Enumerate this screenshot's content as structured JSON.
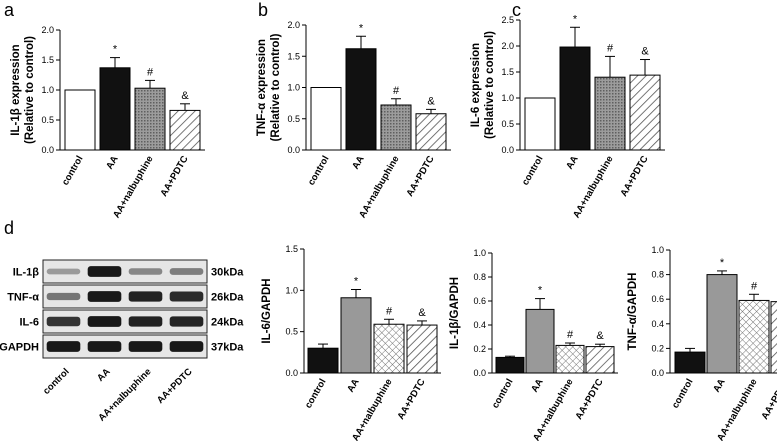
{
  "panel_labels": {
    "a": "a",
    "b": "b",
    "c": "c",
    "d": "d"
  },
  "chart_data": [
    {
      "type": "bar",
      "panel": "a",
      "categories": [
        "control",
        "AA",
        "AA+nalbuphine",
        "AA+PDTC"
      ],
      "values": [
        1.0,
        1.37,
        1.03,
        0.66
      ],
      "errors": [
        0,
        0.17,
        0.13,
        0.11
      ],
      "annotations": [
        "",
        "*",
        "#",
        "&"
      ],
      "ylabel_lines": [
        "IL-1β expression",
        "(Relative to control)"
      ],
      "ylim": [
        0,
        2.0
      ],
      "yticks": [
        "0.0",
        "0.5",
        "1.0",
        "1.5",
        "2.0"
      ],
      "styles": [
        "white",
        "black",
        "dots",
        "hatch"
      ]
    },
    {
      "type": "bar",
      "panel": "b",
      "categories": [
        "control",
        "AA",
        "AA+nalbuphine",
        "AA+PDTC"
      ],
      "values": [
        1.0,
        1.62,
        0.72,
        0.58
      ],
      "errors": [
        0,
        0.2,
        0.1,
        0.07
      ],
      "annotations": [
        "",
        "*",
        "#",
        "&"
      ],
      "ylabel_lines": [
        "TNF-α expression",
        "(Relative to control)"
      ],
      "ylim": [
        0,
        2.0
      ],
      "yticks": [
        "0.0",
        "0.5",
        "1.0",
        "1.5",
        "2.0"
      ],
      "styles": [
        "white",
        "black",
        "dots",
        "hatch"
      ]
    },
    {
      "type": "bar",
      "panel": "c",
      "categories": [
        "control",
        "AA",
        "AA+nalbuphine",
        "AA+PDTC"
      ],
      "values": [
        1.0,
        1.98,
        1.4,
        1.44
      ],
      "errors": [
        0,
        0.38,
        0.4,
        0.3
      ],
      "annotations": [
        "",
        "*",
        "#",
        "&"
      ],
      "ylabel_lines": [
        "IL-6 expression",
        "(Relative to control)"
      ],
      "ylim": [
        0,
        2.5
      ],
      "yticks": [
        "0.0",
        "0.5",
        "1.0",
        "1.5",
        "2.0",
        "2.5"
      ],
      "styles": [
        "white",
        "black",
        "dots",
        "hatch"
      ]
    },
    {
      "type": "bar",
      "panel": "d",
      "categories": [
        "control",
        "AA",
        "AA+nalbuphine",
        "AA+PDTC"
      ],
      "values": [
        0.3,
        0.91,
        0.59,
        0.58
      ],
      "errors": [
        0.05,
        0.1,
        0.06,
        0.05
      ],
      "annotations": [
        "",
        "*",
        "#",
        "&"
      ],
      "ylabel_lines": [
        "IL-6/GAPDH"
      ],
      "ylim": [
        0,
        1.5
      ],
      "yticks": [
        "0.0",
        "0.5",
        "1.0",
        "1.5"
      ],
      "styles": [
        "black",
        "gray",
        "check",
        "hatch"
      ]
    },
    {
      "type": "bar",
      "panel": "d",
      "categories": [
        "control",
        "AA",
        "AA+nalbuphine",
        "AA+PDTC"
      ],
      "values": [
        0.13,
        0.53,
        0.23,
        0.22
      ],
      "errors": [
        0.01,
        0.09,
        0.02,
        0.02
      ],
      "annotations": [
        "",
        "*",
        "#",
        "&"
      ],
      "ylabel_lines": [
        "IL-1β/GAPDH"
      ],
      "ylim": [
        0,
        1.0
      ],
      "yticks": [
        "0.0",
        "0.2",
        "0.4",
        "0.6",
        "0.8",
        "1.0"
      ],
      "styles": [
        "black",
        "gray",
        "check",
        "hatch"
      ]
    },
    {
      "type": "bar",
      "panel": "d",
      "categories": [
        "control",
        "AA",
        "AA+nalbuphine",
        "AA+PDTC"
      ],
      "values": [
        0.17,
        0.8,
        0.59,
        0.58
      ],
      "errors": [
        0.03,
        0.03,
        0.05,
        0.06
      ],
      "annotations": [
        "",
        "*",
        "#",
        "&"
      ],
      "ylabel_lines": [
        "TNF-α/GAPDH"
      ],
      "ylim": [
        0,
        1.0
      ],
      "yticks": [
        "0.0",
        "0.2",
        "0.4",
        "0.6",
        "0.8",
        "1.0"
      ],
      "styles": [
        "black",
        "gray",
        "check",
        "hatch"
      ]
    }
  ],
  "blot": {
    "bands": [
      {
        "label": "IL-1β",
        "kda": "30kDa",
        "intensities": [
          0.25,
          0.95,
          0.35,
          0.4
        ]
      },
      {
        "label": "TNF-α",
        "kda": "26kDa",
        "intensities": [
          0.45,
          0.95,
          0.9,
          0.85
        ]
      },
      {
        "label": "IL-6",
        "kda": "24kDa",
        "intensities": [
          0.8,
          0.95,
          0.9,
          0.88
        ]
      },
      {
        "label": "GAPDH",
        "kda": "37kDa",
        "intensities": [
          0.95,
          0.95,
          0.95,
          0.95
        ]
      }
    ],
    "lanes": [
      "control",
      "AA",
      "AA+nalbuphine",
      "AA+PDTC"
    ]
  },
  "colors": {
    "black": "#111111",
    "gray": "#999999",
    "dots": "#8a8a8a"
  }
}
